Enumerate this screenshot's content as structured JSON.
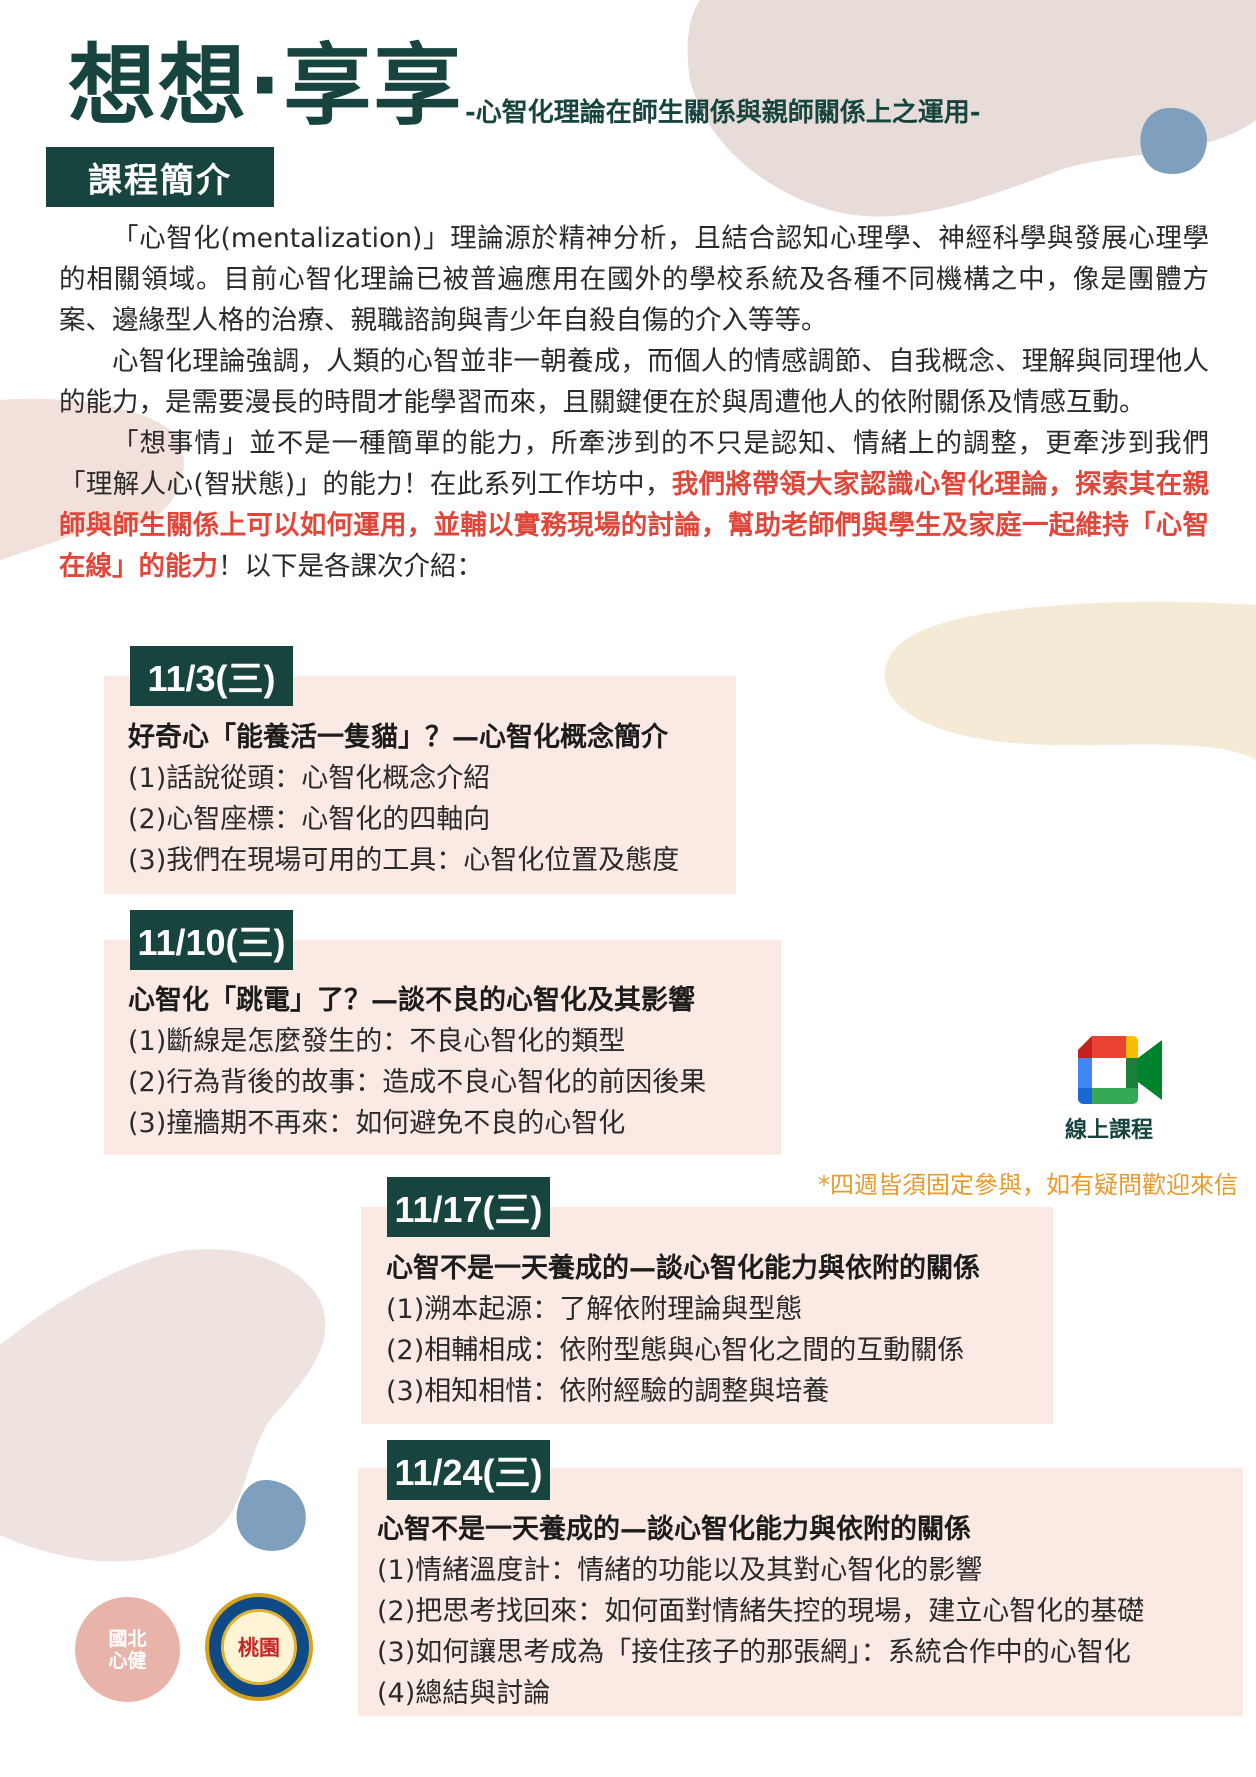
{
  "header": {
    "title": "想想·享享",
    "subtitle": "-心智化理論在師生關係與親師關係上之運用-"
  },
  "section_tag": "課程簡介",
  "intro": {
    "p1": "「心智化(mentalization)」理論源於精神分析，且結合認知心理學、神經科學與發展心理學的相關領域。目前心智化理論已被普遍應用在國外的學校系統及各種不同機構之中，像是團體方案、邊緣型人格的治療、親職諮詢與青少年自殺自傷的介入等等。",
    "p2": "心智化理論強調，人類的心智並非一朝養成，而個人的情感調節、自我概念、理解與同理他人的能力，是需要漫長的時間才能學習而來，且關鍵便在於與周遭他人的依附關係及情感互動。",
    "p3_start": "「想事情」並不是一種簡單的能力，所牽涉到的不只是認知、情緒上的調整，更牽涉到我們「理解人心(智狀態)」的能力！在此系列工作坊中，",
    "p3_highlight": "我們將帶領大家認識心智化理論，探索其在親師與師生關係上可以如何運用，並輔以實務現場的討論，幫助老師們與學生及家庭一起維持「心智在線」的能力",
    "p3_end": "！以下是各課次介紹："
  },
  "sessions": [
    {
      "date": "11/3(三)",
      "title": "好奇心「能養活一隻貓」？—心智化概念簡介",
      "items": [
        "(1)話說從頭：心智化概念介紹",
        "(2)心智座標：心智化的四軸向",
        "(3)我們在現場可用的工具：心智化位置及態度"
      ]
    },
    {
      "date": "11/10(三)",
      "title": "心智化「跳電」了？—談不良的心智化及其影響",
      "items": [
        "(1)斷線是怎麼發生的：不良心智化的類型",
        "(2)行為背後的故事：造成不良心智化的前因後果",
        "(3)撞牆期不再來：如何避免不良的心智化"
      ]
    },
    {
      "date": "11/17(三)",
      "title": "心智不是一天養成的—談心智化能力與依附的關係",
      "items": [
        "(1)溯本起源：了解依附理論與型態",
        "(2)相輔相成：依附型態與心智化之間的互動關係",
        "(3)相知相惜：依附經驗的調整與培養"
      ]
    },
    {
      "date": "11/24(三)",
      "title": "心智不是一天養成的—談心智化能力與依附的關係",
      "items": [
        "(1)情緒溫度計：情緒的功能以及其對心智化的影響",
        "(2)把思考找回來：如何面對情緒失控的現場，建立心智化的基礎",
        "(3)如何讓思考成為「接住孩子的那張網」：系統合作中的心智化",
        "(4)總結與討論"
      ]
    }
  ],
  "online": {
    "label": "線上課程",
    "icon": "google-meet-icon"
  },
  "note": "*四週皆須固定參與，如有疑問歡迎來信",
  "logos": {
    "ntue": "國北心健",
    "taoyuan": "桃園"
  },
  "colors": {
    "primary": "#17443f",
    "highlight": "#e0473a",
    "session_bg": "#fbeae3",
    "note": "#e89a2c"
  }
}
